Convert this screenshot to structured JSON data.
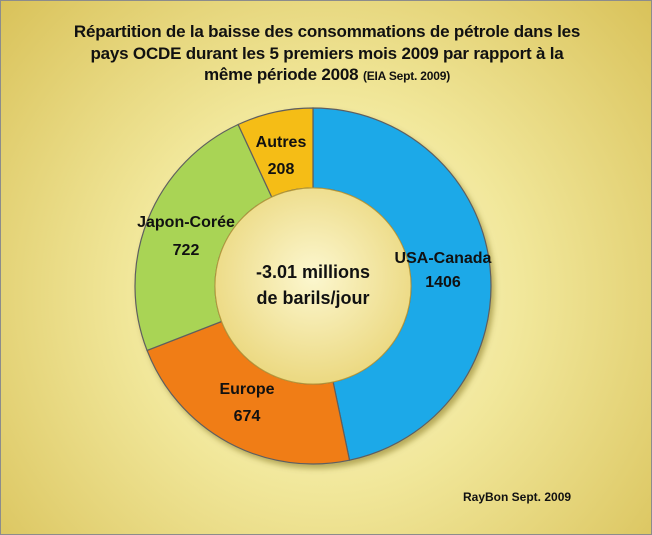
{
  "chart_data": {
    "type": "pie",
    "variant": "donut",
    "title_lines": [
      "Répartition de la baisse des consommations de pétrole  dans les",
      "pays OCDE durant les 5 premiers mois 2009  par rapport à la",
      "même période 2008"
    ],
    "title_source": "(EIA Sept. 2009)",
    "center_label_lines": [
      "-3.01 millions",
      "de barils/jour"
    ],
    "slices": [
      {
        "name": "USA-Canada",
        "value": 1406,
        "value_label": "1406",
        "color": "#1aa9e8"
      },
      {
        "name": "Europe",
        "value": 674,
        "value_label": "674",
        "color": "#f07d12"
      },
      {
        "name": "Japon-Corée",
        "value": 722,
        "value_label": "722",
        "color": "#a9d455"
      },
      {
        "name": "Autres",
        "value": 208,
        "value_label": "208",
        "color": "#f5bd14"
      }
    ],
    "start_angle_deg": 0,
    "direction": "clockwise",
    "legend": "none"
  },
  "credit": "RayBon Sept. 2009"
}
